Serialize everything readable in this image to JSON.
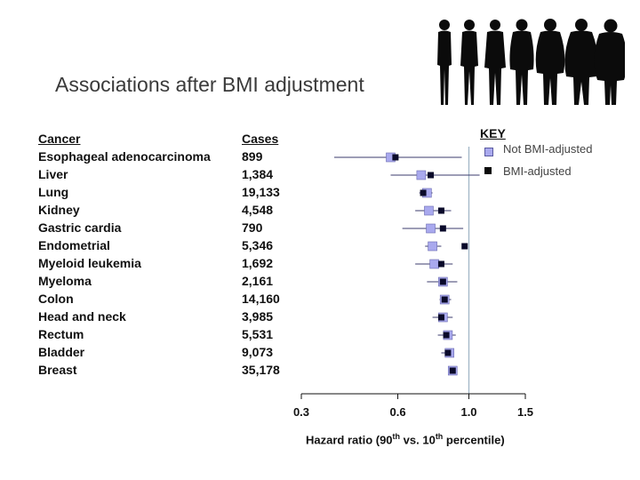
{
  "title": "Associations after BMI adjustment",
  "columns": {
    "cancer": "Cancer",
    "cases": "Cases"
  },
  "key": {
    "title": "KEY",
    "not_adjusted": "Not BMI-adjusted",
    "adjusted": "BMI-adjusted"
  },
  "colors": {
    "not_adjusted": "#a9a9ee",
    "adjusted": "#0a0a2a",
    "line": "#3b3b6e",
    "ref": "#9eb4c4"
  },
  "icons": [
    "obesity-silhouette-icon"
  ],
  "chart_data": {
    "type": "forest",
    "title": "Associations after BMI adjustment",
    "xlabel_prefix": "Hazard ratio (90",
    "xlabel_sup1": "th",
    "xlabel_mid": " vs. 10",
    "xlabel_sup2": "th",
    "xlabel_suffix": " percentile)",
    "xscale": "log",
    "xlim": [
      0.3,
      1.5
    ],
    "xticks": [
      0.3,
      0.6,
      1.0,
      1.5
    ],
    "xtick_labels": [
      "0.3",
      "0.6",
      "1.0",
      "1.5"
    ],
    "reference_line": 1.0,
    "rows": [
      {
        "cancer": "Esophageal adenocarcinoma",
        "cases": "899",
        "not_adj": 0.57,
        "adj": 0.59,
        "ci": [
          0.38,
          0.95
        ]
      },
      {
        "cancer": "Liver",
        "cases": "1,384",
        "not_adj": 0.71,
        "adj": 0.76,
        "ci": [
          0.57,
          1.08
        ]
      },
      {
        "cancer": "Lung",
        "cases": "19,133",
        "not_adj": 0.74,
        "adj": 0.72,
        "ci": [
          0.7,
          0.77
        ]
      },
      {
        "cancer": "Kidney",
        "cases": "4,548",
        "not_adj": 0.75,
        "adj": 0.82,
        "ci": [
          0.68,
          0.88
        ]
      },
      {
        "cancer": "Gastric cardia",
        "cases": "790",
        "not_adj": 0.76,
        "adj": 0.83,
        "ci": [
          0.62,
          0.96
        ]
      },
      {
        "cancer": "Endometrial",
        "cases": "5,346",
        "not_adj": 0.77,
        "adj": 0.97,
        "ci": [
          0.73,
          0.82
        ]
      },
      {
        "cancer": "Myeloid leukemia",
        "cases": "1,692",
        "not_adj": 0.78,
        "adj": 0.82,
        "ci": [
          0.68,
          0.89
        ]
      },
      {
        "cancer": "Myeloma",
        "cases": "2,161",
        "not_adj": 0.83,
        "adj": 0.83,
        "ci": [
          0.74,
          0.92
        ]
      },
      {
        "cancer": "Colon",
        "cases": "14,160",
        "not_adj": 0.84,
        "adj": 0.84,
        "ci": [
          0.81,
          0.88
        ]
      },
      {
        "cancer": "Head and neck",
        "cases": "3,985",
        "not_adj": 0.83,
        "adj": 0.82,
        "ci": [
          0.77,
          0.89
        ]
      },
      {
        "cancer": "Rectum",
        "cases": "5,531",
        "not_adj": 0.86,
        "adj": 0.85,
        "ci": [
          0.8,
          0.91
        ]
      },
      {
        "cancer": "Bladder",
        "cases": "9,073",
        "not_adj": 0.87,
        "adj": 0.86,
        "ci": [
          0.82,
          0.9
        ]
      },
      {
        "cancer": "Breast",
        "cases": "35,178",
        "not_adj": 0.89,
        "adj": 0.89,
        "ci": [
          0.87,
          0.92
        ]
      }
    ]
  }
}
